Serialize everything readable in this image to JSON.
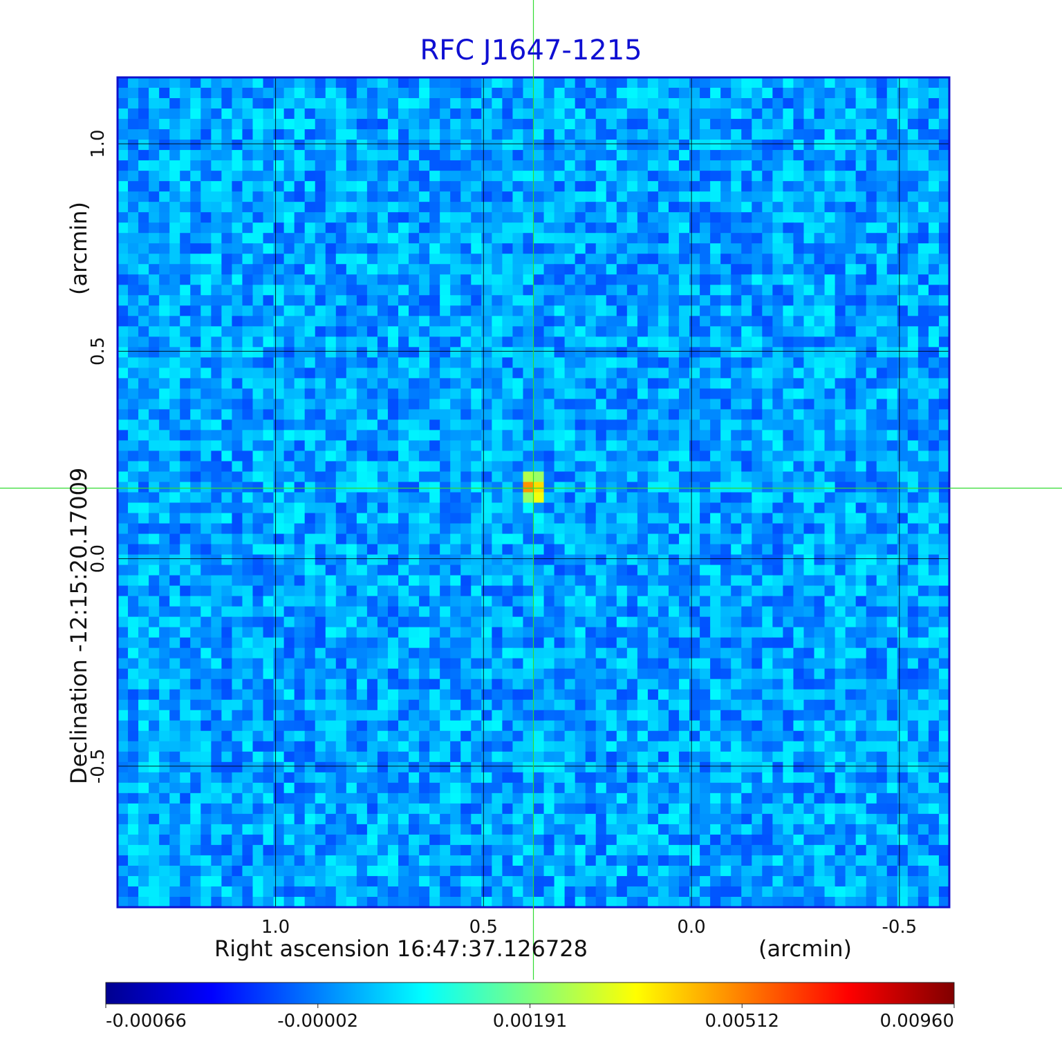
{
  "chart_data": {
    "type": "heatmap",
    "title": "RFC J1647-1215",
    "xlabel": "Right ascension  16:47:37.126728",
    "xlabel_unit": "(arcmin)",
    "ylabel": "Declination  -12:15:20.17009",
    "ylabel_unit": "(arcmin)",
    "x_ticks": [
      "1.0",
      "0.5",
      "0.0",
      "-0.5"
    ],
    "y_ticks": [
      "1.0",
      "0.5",
      "0.0",
      "-0.5"
    ],
    "x_tick_values": [
      1.0,
      0.5,
      0.0,
      -0.5
    ],
    "y_tick_values": [
      1.0,
      0.5,
      0.0,
      -0.5
    ],
    "xlim": [
      1.38,
      -0.62
    ],
    "ylim": [
      -0.84,
      1.16
    ],
    "grid": true,
    "crosshair": {
      "x": 0.38,
      "y": 0.17
    },
    "source_peak": {
      "x": 0.38,
      "y": 0.17,
      "value": 0.0096
    },
    "colormap": "jet",
    "colorbar_ticks": [
      "-0.00066",
      "-0.00002",
      "0.00191",
      "0.00512",
      "0.00960"
    ]
  },
  "colors": {
    "title": "#0f0fd2",
    "frame": "#1010cc",
    "crosshair": "#32dc32",
    "grid": "#000000"
  }
}
